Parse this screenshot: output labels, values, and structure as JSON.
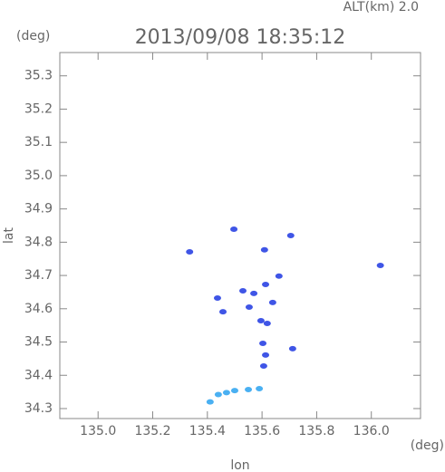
{
  "chart_data": {
    "type": "scatter",
    "title": "2013/09/08 18:35:12",
    "subtitle": "ALT(km) 2.0",
    "y_unit": "(deg)",
    "x_unit": "(deg)",
    "x_label": "lon",
    "y_label": "lat",
    "xlim": [
      134.86,
      136.18
    ],
    "ylim": [
      34.27,
      35.37
    ],
    "xticks": [
      {
        "value": 135.0,
        "label": "135.0"
      },
      135.2,
      135.4,
      135.6,
      135.8,
      {
        "value": 136.0,
        "label": "136.0"
      }
    ],
    "yticks": [
      34.3,
      34.4,
      34.5,
      34.6,
      34.7,
      34.8,
      34.9,
      {
        "value": 35.0,
        "label": "35.0"
      },
      35.1,
      35.2,
      35.3
    ],
    "grid": false,
    "series": [
      {
        "color": "#3f55e6",
        "x": [
          136.033,
          135.712,
          135.603,
          135.606,
          135.613,
          135.596,
          135.619,
          135.53,
          135.57,
          135.613,
          135.662,
          135.437,
          135.553,
          135.609,
          135.705,
          135.457,
          135.639,
          135.335,
          135.497
        ],
        "values": [
          34.73,
          34.48,
          34.496,
          34.428,
          34.461,
          34.564,
          34.556,
          34.654,
          34.646,
          34.673,
          34.698,
          34.632,
          34.605,
          34.777,
          34.82,
          34.591,
          34.619,
          34.771,
          34.839
        ]
      },
      {
        "color": "#4ab0f2",
        "x": [
          135.41,
          135.44,
          135.47,
          135.5,
          135.55,
          135.59
        ],
        "values": [
          34.32,
          34.342,
          34.348,
          34.354,
          34.357,
          34.36
        ]
      }
    ]
  }
}
